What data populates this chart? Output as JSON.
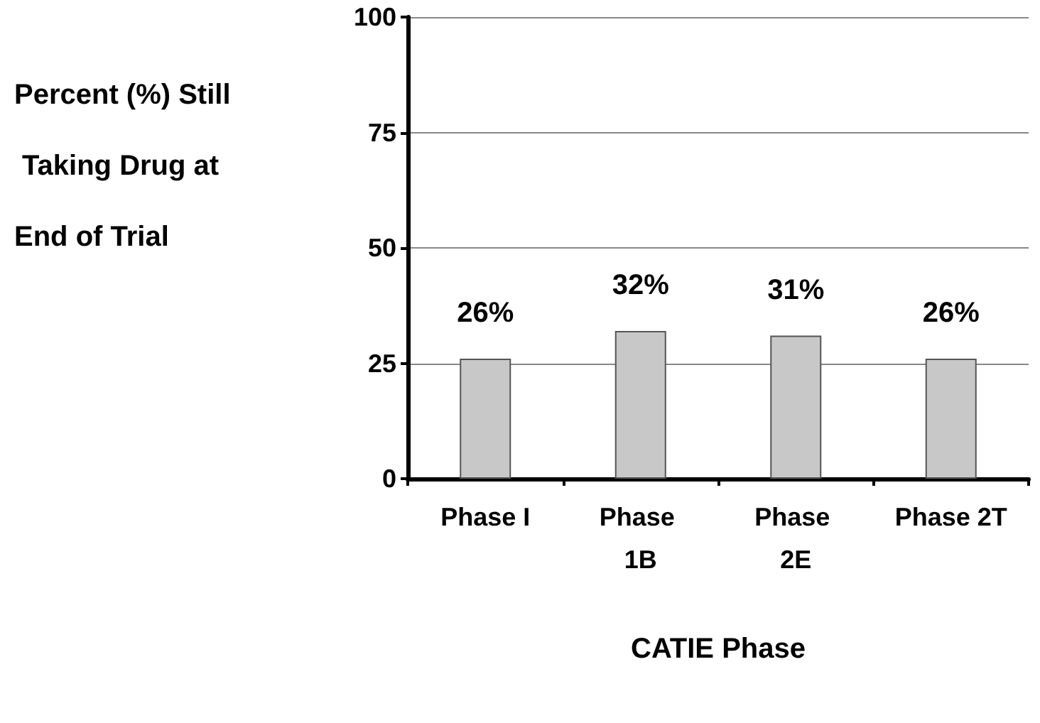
{
  "chart_data": {
    "type": "bar",
    "xlabel": "CATIE Phase",
    "ylabel": "Percent (%) Still Taking Drug at End of Trial",
    "categories": [
      "Phase I",
      "Phase 1B",
      "Phase 2E",
      "Phase 2T"
    ],
    "values": [
      26,
      32,
      31,
      26
    ],
    "value_labels": [
      "26%",
      "32%",
      "31%",
      "26%"
    ],
    "color": "#c8c8c8",
    "ylim": [
      0,
      100
    ],
    "yticks": [
      0,
      25,
      50,
      75,
      100
    ],
    "grid": "y"
  }
}
